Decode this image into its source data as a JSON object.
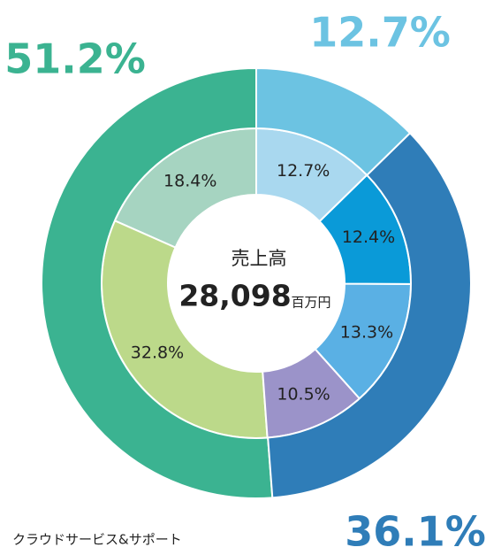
{
  "chart_data": {
    "type": "nested-donut",
    "center_title": "売上高",
    "center_value": "28,098",
    "center_unit": "百万円",
    "annotation": "クラウドサービス&サポート",
    "series": [
      {
        "name": "outer",
        "values": [
          12.7,
          36.1,
          51.2
        ],
        "value_labels": [
          "12.7%",
          "36.1%",
          "51.2%"
        ],
        "colors": [
          "#6cc3e2",
          "#2f7db8",
          "#3bb391"
        ]
      },
      {
        "name": "inner",
        "values": [
          12.7,
          12.4,
          13.3,
          10.5,
          32.8,
          18.4
        ],
        "value_labels": [
          "12.7%",
          "12.4%",
          "13.3%",
          "10.5%",
          "32.8%",
          "18.4%"
        ],
        "colors": [
          "#a9d8ef",
          "#0a9ad8",
          "#5ab0e4",
          "#9b93c9",
          "#bcd98a",
          "#a6d4c1"
        ]
      }
    ]
  }
}
